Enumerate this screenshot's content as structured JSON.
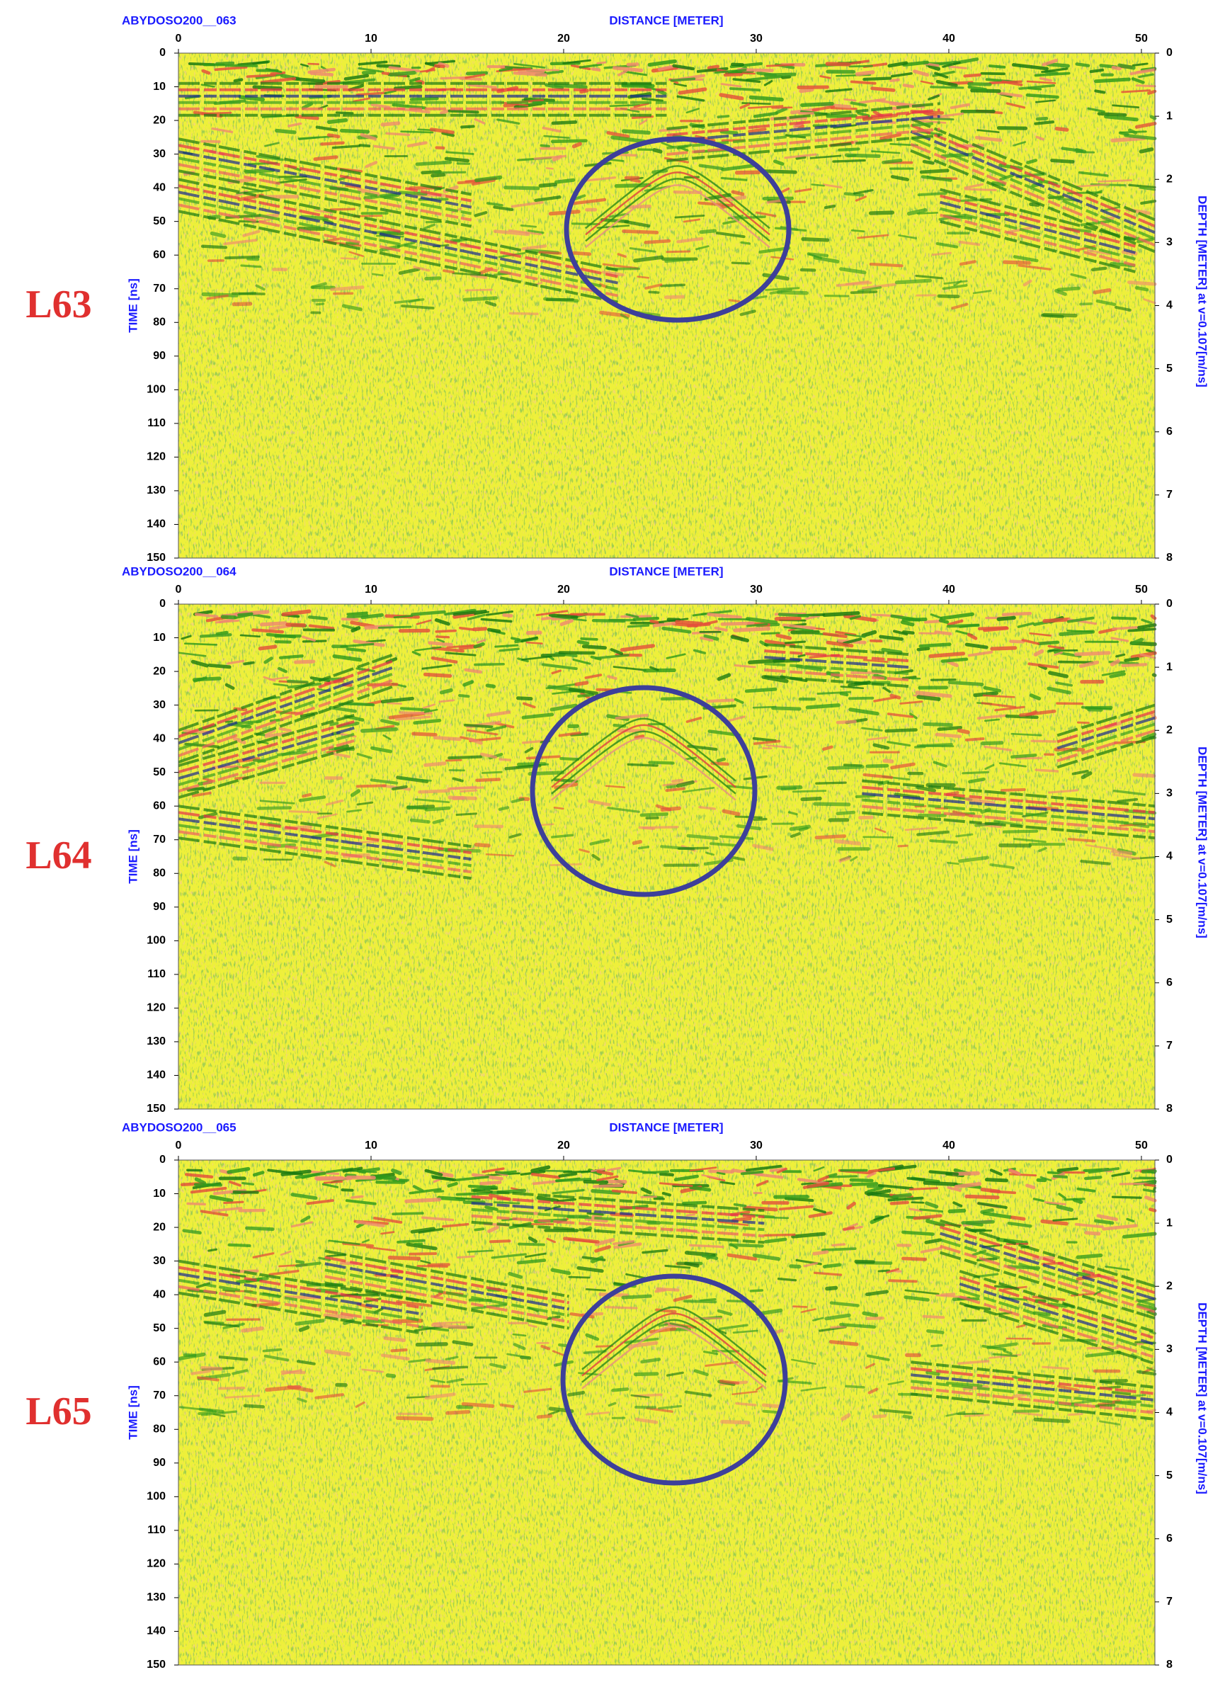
{
  "chart_data": [
    {
      "type": "radargram",
      "title": "ABYDOSO200__063",
      "xlabel": "DISTANCE [METER]",
      "ylabel": "TIME [ns]",
      "y2label": "DEPTH [METER] at v=0.107[m/ns]",
      "label": "L63",
      "xlim": [
        0,
        50.7
      ],
      "xticks": [
        0,
        10,
        20,
        30,
        40,
        50
      ],
      "ylim": [
        0,
        150
      ],
      "yticks": [
        0,
        10,
        20,
        30,
        40,
        50,
        60,
        70,
        80,
        90,
        100,
        110,
        120,
        130,
        140,
        150
      ],
      "y_inverted": true,
      "y2lim": [
        0,
        8
      ],
      "y2ticks": [
        0,
        1,
        2,
        3,
        4,
        5,
        6,
        7,
        8
      ]
    },
    {
      "type": "radargram",
      "title": "ABYDOSO200__064",
      "xlabel": "DISTANCE [METER]",
      "ylabel": "TIME [ns]",
      "y2label": "DEPTH [METER] at v=0.107[m/ns]",
      "label": "L64",
      "xlim": [
        0,
        50.7
      ],
      "xticks": [
        0,
        10,
        20,
        30,
        40,
        50
      ],
      "ylim": [
        0,
        150
      ],
      "yticks": [
        0,
        10,
        20,
        30,
        40,
        50,
        60,
        70,
        80,
        90,
        100,
        110,
        120,
        130,
        140,
        150
      ],
      "y_inverted": true,
      "y2lim": [
        0,
        8
      ],
      "y2ticks": [
        0,
        1,
        2,
        3,
        4,
        5,
        6,
        7,
        8
      ]
    },
    {
      "type": "radargram",
      "title": "ABYDOSO200__065",
      "xlabel": "DISTANCE [METER]",
      "ylabel": "TIME [ns]",
      "y2label": "DEPTH [METER] at v=0.107[m/ns]",
      "label": "L65",
      "xlim": [
        0,
        50.7
      ],
      "xticks": [
        0,
        10,
        20,
        30,
        40,
        50
      ],
      "ylim": [
        0,
        150
      ],
      "yticks": [
        0,
        10,
        20,
        30,
        40,
        50,
        60,
        70,
        80,
        90,
        100,
        110,
        120,
        130,
        140,
        150
      ],
      "y_inverted": true,
      "y2lim": [
        0,
        8
      ],
      "y2ticks": [
        0,
        1,
        2,
        3,
        4,
        5,
        6,
        7,
        8
      ]
    }
  ]
}
